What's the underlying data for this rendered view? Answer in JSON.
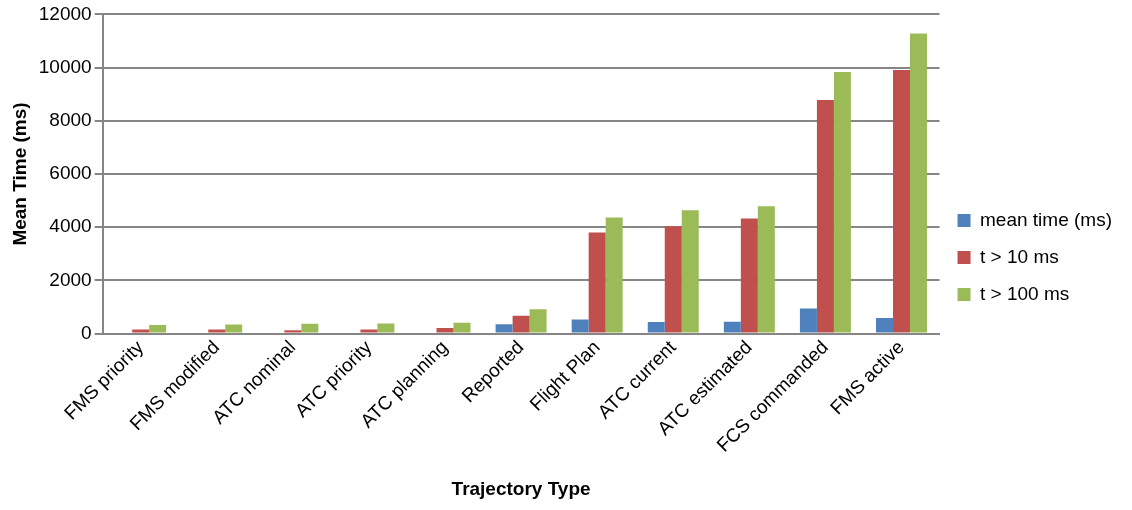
{
  "chart_data": {
    "type": "bar",
    "xlabel": "Trajectory Type",
    "ylabel": "Mean Time (ms)",
    "categories": [
      "FMS priority",
      "FMS modified",
      "ATC nominal",
      "ATC priority",
      "ATC planning",
      "Reported",
      "Flight Plan",
      "ATC current",
      "ATC estimated",
      "FCS commanded",
      "FMS active"
    ],
    "series": [
      {
        "name": "mean time (ms)",
        "color": "#4f81bd",
        "values": [
          null,
          null,
          null,
          null,
          null,
          350,
          530,
          430,
          440,
          940,
          580
        ]
      },
      {
        "name": "t > 10 ms",
        "color": "#c0504d",
        "values": [
          150,
          150,
          120,
          150,
          210,
          670,
          3800,
          4030,
          4330,
          8780,
          9910
        ]
      },
      {
        "name": "t > 100 ms",
        "color": "#9bbb59",
        "values": [
          320,
          340,
          370,
          380,
          410,
          910,
          4360,
          4640,
          4790,
          9830,
          11280
        ]
      }
    ],
    "ylim": [
      0,
      12000
    ],
    "yticks": [
      0,
      2000,
      4000,
      6000,
      8000,
      10000,
      12000
    ],
    "grid": "y",
    "legend": "right"
  }
}
